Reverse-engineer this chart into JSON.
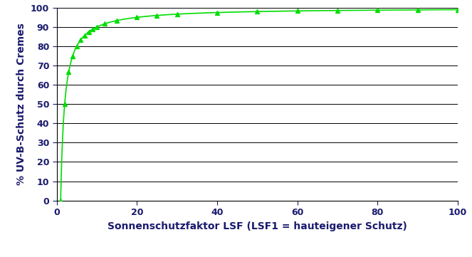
{
  "title": "",
  "xlabel": "Sonnenschutzfaktor LSF (LSF1 = hauteigener Schutz)",
  "ylabel": "% UV-B-Schutz durch Cremes",
  "xlim": [
    0,
    100
  ],
  "ylim": [
    0,
    100
  ],
  "xticks": [
    0,
    20,
    40,
    60,
    80,
    100
  ],
  "yticks": [
    0,
    10,
    20,
    30,
    40,
    50,
    60,
    70,
    80,
    90,
    100
  ],
  "marker_lsf_values": [
    1,
    2,
    3,
    4,
    5,
    6,
    7,
    8,
    9,
    10,
    12,
    15,
    20,
    25,
    30,
    40,
    50,
    60,
    70,
    80,
    90,
    100
  ],
  "line_color": "#00dd00",
  "marker_color": "#00dd00",
  "marker": "^",
  "markersize": 4,
  "linewidth": 1.2,
  "grid_color": "#000000",
  "grid_linewidth": 0.7,
  "xlabel_fontsize": 10,
  "ylabel_fontsize": 10,
  "tick_fontsize": 9,
  "label_color": "#1a1a6e",
  "tick_color": "#1a1a6e",
  "background_color": "#ffffff",
  "figsize": [
    6.63,
    3.61
  ],
  "dpi": 100
}
